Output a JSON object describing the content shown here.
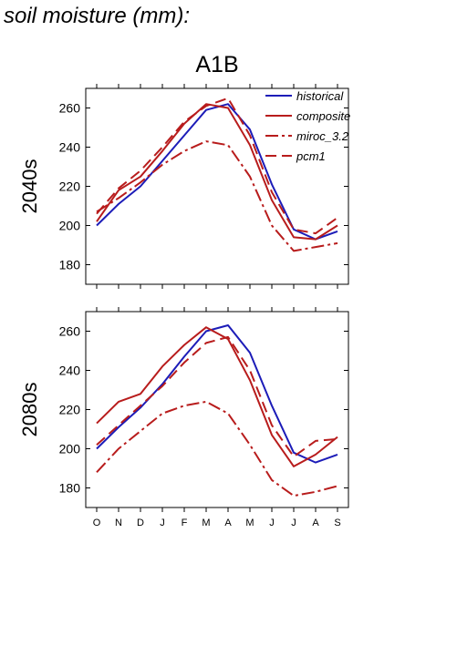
{
  "page": {
    "title": "soil moisture (mm):",
    "scenario": "A1B"
  },
  "chart_data": {
    "type": "line",
    "title": "A1B",
    "x": [
      "O",
      "N",
      "D",
      "J",
      "F",
      "M",
      "A",
      "M",
      "J",
      "J",
      "A",
      "S"
    ],
    "ylim": [
      170,
      270
    ],
    "yticks": [
      180,
      200,
      220,
      240,
      260
    ],
    "legend_position": "top-right",
    "legend": [
      "historical",
      "composite",
      "miroc_3.2",
      "pcm1"
    ],
    "series_styles": {
      "historical": {
        "color": "#1c1cb8",
        "dash": ""
      },
      "composite": {
        "color": "#b81c1c",
        "dash": ""
      },
      "miroc_3.2": {
        "color": "#b81c1c",
        "dash": "14,4,3,4"
      },
      "pcm1": {
        "color": "#b81c1c",
        "dash": "12,6"
      }
    },
    "panels": [
      {
        "label": "2040s",
        "series": [
          {
            "name": "historical",
            "values": [
              200,
              211,
              220,
              233,
              246,
              259,
              262,
              249,
              221,
              198,
              193,
              197
            ]
          },
          {
            "name": "composite",
            "values": [
              202,
              218,
              225,
              238,
              252,
              262,
              260,
              241,
              213,
              194,
              193,
              200
            ]
          },
          {
            "name": "miroc_3.2",
            "values": [
              207,
              214,
              222,
              231,
              238,
              243,
              241,
              225,
              200,
              187,
              189,
              191
            ]
          },
          {
            "name": "pcm1",
            "values": [
              206,
              219,
              228,
              240,
              253,
              261,
              265,
              246,
              217,
              198,
              196,
              204
            ]
          }
        ]
      },
      {
        "label": "2080s",
        "series": [
          {
            "name": "historical",
            "values": [
              200,
              211,
              221,
              233,
              247,
              260,
              263,
              249,
              222,
              198,
              193,
              197
            ]
          },
          {
            "name": "composite",
            "values": [
              213,
              224,
              228,
              242,
              253,
              262,
              256,
              235,
              207,
              191,
              197,
              206
            ]
          },
          {
            "name": "miroc_3.2",
            "values": [
              188,
              200,
              209,
              218,
              222,
              224,
              218,
              202,
              184,
              176,
              178,
              181
            ]
          },
          {
            "name": "pcm1",
            "values": [
              202,
              212,
              222,
              232,
              244,
              254,
              257,
              240,
              212,
              196,
              204,
              205
            ]
          }
        ]
      }
    ]
  }
}
